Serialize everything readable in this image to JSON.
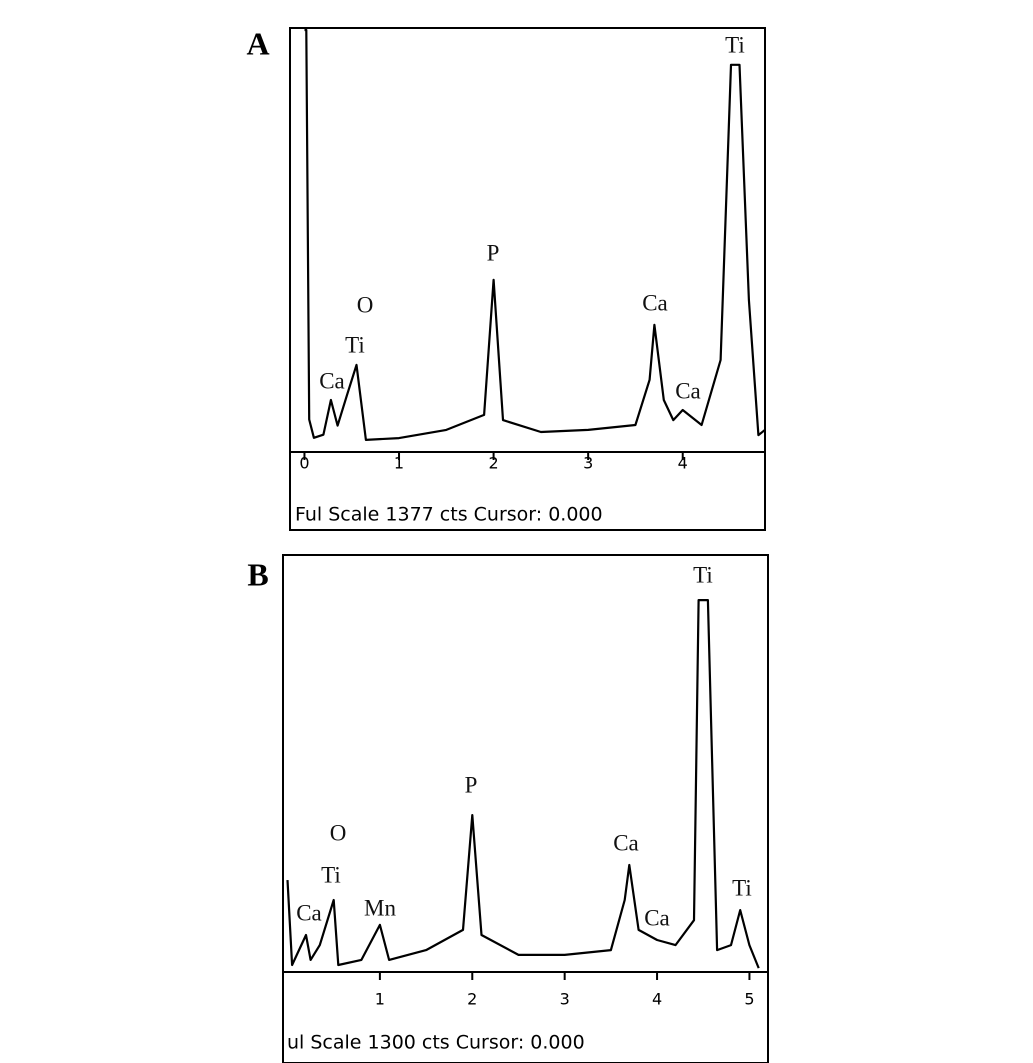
{
  "chart_data": [
    {
      "type": "line",
      "panel_label": "A",
      "footer": "Ful Scale 1377 cts Cursor: 0.000",
      "xlim": [
        -0.1,
        4.87
      ],
      "xticks": [
        0,
        1,
        2,
        3,
        4
      ],
      "ylim": [
        0,
        1377
      ],
      "color": "#000000",
      "annotations": [
        "O",
        "Ti",
        "Ca",
        "P",
        "Ca",
        "Ca",
        "Ti"
      ],
      "x": [
        0.0,
        0.02,
        0.05,
        0.1,
        0.2,
        0.28,
        0.35,
        0.45,
        0.55,
        0.65,
        1.0,
        1.5,
        1.9,
        2.0,
        2.1,
        2.5,
        3.0,
        3.5,
        3.65,
        3.7,
        3.8,
        3.9,
        4.0,
        4.2,
        4.4,
        4.51,
        4.6,
        4.7,
        4.8,
        4.87
      ],
      "values": [
        1377,
        1377,
        100,
        40,
        50,
        164,
        80,
        180,
        279,
        33,
        39,
        66,
        115,
        558,
        98,
        59,
        66,
        82,
        230,
        410,
        164,
        98,
        131,
        82,
        295,
        1263,
        1263,
        492,
        49,
        66
      ]
    },
    {
      "type": "line",
      "panel_label": "B",
      "footer": "ul Scale 1300 cts Cursor: 0.000",
      "xlim": [
        0,
        5.19
      ],
      "xticks": [
        1,
        2,
        3,
        4,
        5
      ],
      "ylim": [
        0,
        1300
      ],
      "color": "#000000",
      "annotations": [
        "O",
        "Ti",
        "Ca",
        "Mn",
        "P",
        "Ca",
        "Ca",
        "Ti",
        "Ti"
      ],
      "x": [
        0.0,
        0.05,
        0.2,
        0.25,
        0.35,
        0.5,
        0.55,
        0.8,
        1.0,
        1.1,
        1.5,
        1.9,
        2.0,
        2.1,
        2.5,
        3.0,
        3.5,
        3.65,
        3.7,
        3.8,
        4.0,
        4.2,
        4.4,
        4.45,
        4.55,
        4.65,
        4.8,
        4.9,
        5.0,
        5.1
      ],
      "values": [
        285,
        16,
        111,
        32,
        79,
        222,
        16,
        32,
        143,
        32,
        63,
        127,
        491,
        111,
        48,
        48,
        63,
        222,
        333,
        127,
        95,
        79,
        158,
        1173,
        1173,
        63,
        79,
        190,
        79,
        6
      ]
    }
  ]
}
